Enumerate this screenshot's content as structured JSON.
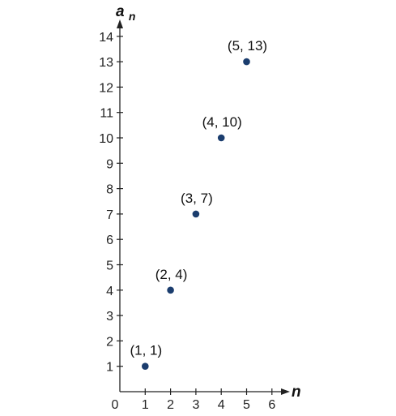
{
  "chart_data": {
    "type": "scatter",
    "title": "",
    "xlabel": "n",
    "ylabel_base": "a",
    "ylabel_subscript": "n",
    "origin_label": "0",
    "xlim": [
      0,
      6
    ],
    "ylim": [
      0,
      14
    ],
    "x_ticks": [
      1,
      2,
      3,
      4,
      5,
      6
    ],
    "y_ticks": [
      1,
      2,
      3,
      4,
      5,
      6,
      7,
      8,
      9,
      10,
      11,
      12,
      13,
      14
    ],
    "grid": false,
    "series": [
      {
        "points": [
          {
            "x": 1,
            "y": 1,
            "label": "(1, 1)"
          },
          {
            "x": 2,
            "y": 4,
            "label": "(2, 4)"
          },
          {
            "x": 3,
            "y": 7,
            "label": "(3, 7)"
          },
          {
            "x": 4,
            "y": 10,
            "label": "(4, 10)"
          },
          {
            "x": 5,
            "y": 13,
            "label": "(5, 13)"
          }
        ]
      }
    ],
    "colors": {
      "point": "#1b3d6e",
      "axis": "#222222"
    }
  }
}
